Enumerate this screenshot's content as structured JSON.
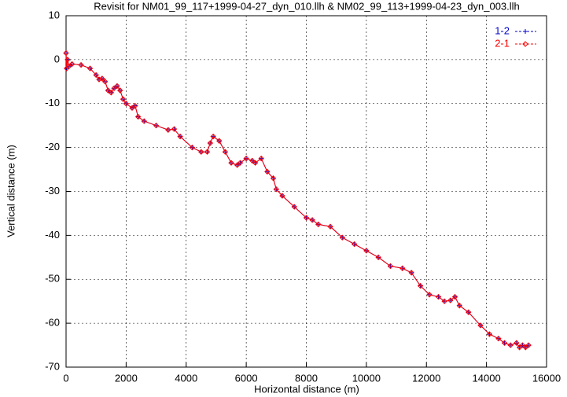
{
  "chart_data": {
    "type": "line",
    "title": "Revisit for NM01_99_117+1999-04-27_dyn_010.llh & NM02_99_113+1999-04-23_dyn_003.llh",
    "x_label": "Horizontal distance (m)",
    "y_label": "Vertical distance (m)",
    "x": [
      0,
      20,
      50,
      100,
      200,
      500,
      800,
      1000,
      1100,
      1200,
      1300,
      1400,
      1500,
      1600,
      1700,
      1800,
      1900,
      2000,
      2200,
      2300,
      2400,
      2600,
      3000,
      3400,
      3600,
      3800,
      4200,
      4500,
      4700,
      4800,
      4900,
      5100,
      5300,
      5500,
      5700,
      5800,
      6000,
      6200,
      6300,
      6500,
      6700,
      6900,
      7000,
      7200,
      7600,
      8000,
      8200,
      8400,
      8800,
      9200,
      9600,
      10000,
      10400,
      10800,
      11200,
      11500,
      11800,
      12100,
      12400,
      12600,
      12800,
      12950,
      13100,
      13400,
      13800,
      14100,
      14400,
      14600,
      14800,
      15000,
      15100,
      15200,
      15300,
      15400
    ],
    "series": [
      {
        "name": "1-2",
        "color": "#0000cc",
        "marker": "cross",
        "values": [
          1.5,
          -2,
          0,
          -1.5,
          -1,
          -1.2,
          -2,
          -3.5,
          -4.5,
          -4.3,
          -5,
          -7,
          -7.5,
          -6.5,
          -6,
          -7,
          -9,
          -10,
          -11,
          -10.5,
          -13,
          -14,
          -15,
          -16,
          -15.8,
          -17.5,
          -20,
          -21,
          -21,
          -19,
          -17.5,
          -18.5,
          -21,
          -23.5,
          -24,
          -23.5,
          -22.5,
          -23,
          -23.5,
          -22.5,
          -25.5,
          -27,
          -29.5,
          -31,
          -33.5,
          -36,
          -36.5,
          -37.5,
          -38,
          -40.5,
          -42,
          -43.5,
          -45,
          -47,
          -47.5,
          -48.5,
          -51.5,
          -53.5,
          -54,
          -55,
          -54.8,
          -54,
          -56,
          -57.5,
          -60.5,
          -62.5,
          -63.5,
          -64.5,
          -65,
          -64.5,
          -65.5,
          -65,
          -65.5,
          -65
        ]
      },
      {
        "name": "2-1",
        "color": "#ff0000",
        "marker": "diamond",
        "values": [
          1.5,
          -2,
          0,
          -1.5,
          -1,
          -1.2,
          -2,
          -3.5,
          -4.5,
          -4.3,
          -5,
          -7,
          -7.5,
          -6.5,
          -6,
          -7,
          -9,
          -10,
          -11,
          -10.5,
          -13,
          -14,
          -15,
          -16,
          -15.8,
          -17.5,
          -20,
          -21,
          -21,
          -19,
          -17.5,
          -18.5,
          -21,
          -23.5,
          -24,
          -23.5,
          -22.5,
          -23,
          -23.5,
          -22.5,
          -25.5,
          -27,
          -29.5,
          -31,
          -33.5,
          -36,
          -36.5,
          -37.5,
          -38,
          -40.5,
          -42,
          -43.5,
          -45,
          -47,
          -47.5,
          -48.5,
          -51.5,
          -53.5,
          -54,
          -55,
          -54.8,
          -54,
          -56,
          -57.5,
          -60.5,
          -62.5,
          -63.5,
          -64.5,
          -65,
          -64.5,
          -65.5,
          -65,
          -65.5,
          -65
        ]
      }
    ],
    "xlim": [
      0,
      16000
    ],
    "xticks": [
      0,
      2000,
      4000,
      6000,
      8000,
      10000,
      12000,
      14000,
      16000
    ],
    "ylim": [
      -70,
      10
    ],
    "yticks": [
      -70,
      -60,
      -50,
      -40,
      -30,
      -20,
      -10,
      0,
      10
    ],
    "grid": true,
    "legend": "top-right"
  }
}
